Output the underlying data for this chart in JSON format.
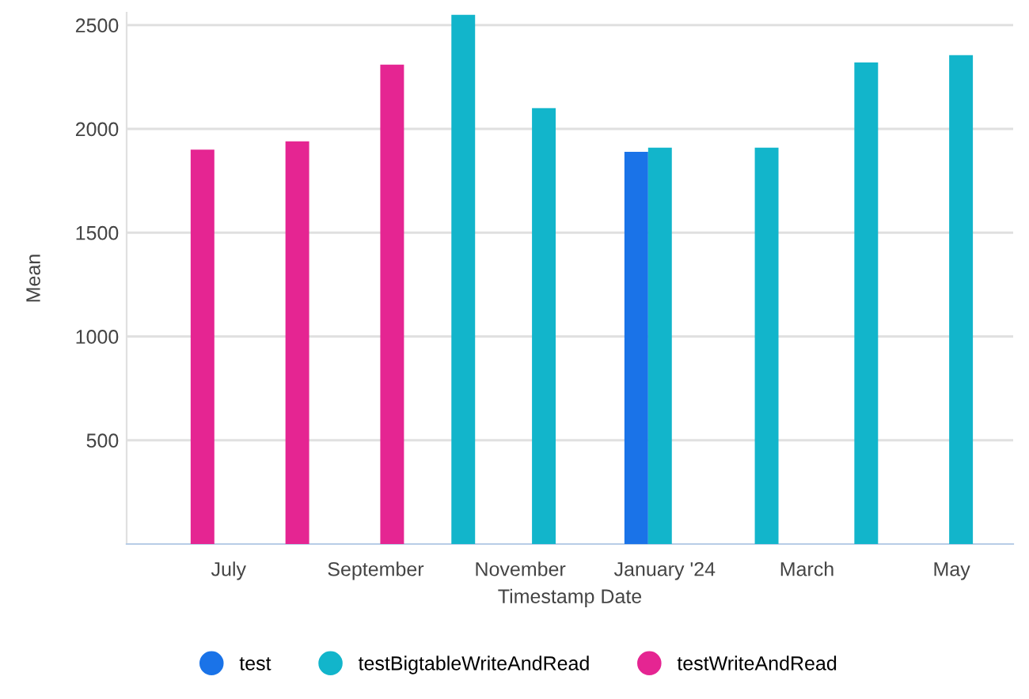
{
  "chart_data": {
    "type": "bar",
    "xlabel": "Timestamp Date",
    "ylabel": "Mean",
    "series": [
      {
        "name": "test",
        "color": "#1a73e8",
        "x": [
          "2023-12-30"
        ],
        "values": [
          1890
        ]
      },
      {
        "name": "testBigtableWriteAndRead",
        "color": "#12b5cb",
        "x": [
          "2023-10-08",
          "2023-11-11",
          "2023-12-30",
          "2024-02-13",
          "2024-03-26",
          "2024-05-05"
        ],
        "values": [
          2550,
          2100,
          1910,
          1910,
          2320,
          2355
        ]
      },
      {
        "name": "testWriteAndRead",
        "color": "#e52592",
        "x": [
          "2023-06-10",
          "2023-07-20",
          "2023-08-29"
        ],
        "values": [
          1900,
          1940,
          2310
        ]
      }
    ],
    "xlim": [
      "2023-05-19",
      "2024-05-27"
    ],
    "xticks": [
      {
        "value": "2023-07-01",
        "label": "July"
      },
      {
        "value": "2023-09-01",
        "label": "September"
      },
      {
        "value": "2023-11-01",
        "label": "November"
      },
      {
        "value": "2024-01-01",
        "label": "January '24"
      },
      {
        "value": "2024-03-01",
        "label": "March"
      },
      {
        "value": "2024-05-01",
        "label": "May"
      }
    ],
    "ylim": [
      0,
      2560
    ],
    "yticks": [
      500,
      1000,
      1500,
      2000,
      2500
    ],
    "grid": "y",
    "legend": "bottom",
    "marker": "circle"
  }
}
